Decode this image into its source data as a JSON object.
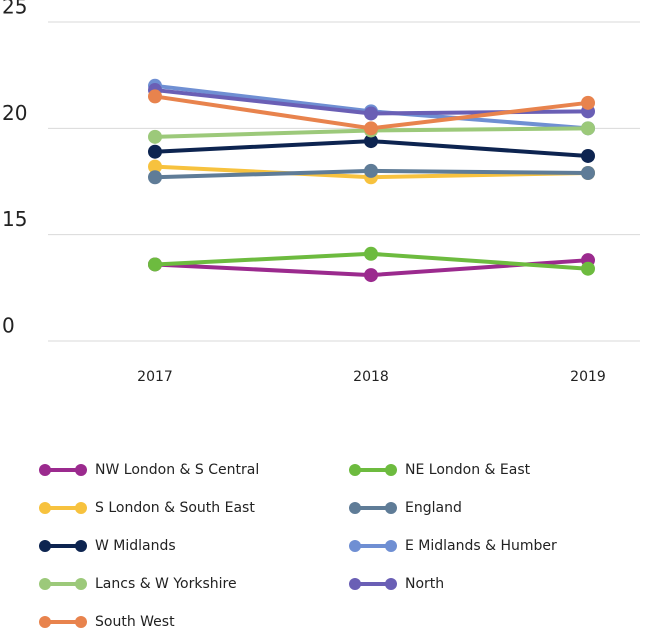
{
  "chart_data": {
    "type": "line",
    "categories": [
      "2017",
      "2018",
      "2019"
    ],
    "series": [
      {
        "name": "NW London & S Central",
        "color": "#9b2a8e",
        "values": [
          13.6,
          13.1,
          13.8
        ]
      },
      {
        "name": "NE London & East",
        "color": "#6dbb3f",
        "values": [
          13.6,
          14.1,
          13.4
        ]
      },
      {
        "name": "S London & South East",
        "color": "#f7c23e",
        "values": [
          18.2,
          17.7,
          17.9
        ]
      },
      {
        "name": "England",
        "color": "#5f7c97",
        "values": [
          17.7,
          18.0,
          17.9
        ]
      },
      {
        "name": "W Midlands",
        "color": "#0d2450",
        "values": [
          18.9,
          19.4,
          18.7
        ]
      },
      {
        "name": "E Midlands & Humber",
        "color": "#6f8fd3",
        "values": [
          22.0,
          20.8,
          20.0
        ]
      },
      {
        "name": "Lancs & W Yorkshire",
        "color": "#9cc97a",
        "values": [
          19.6,
          19.9,
          20.0
        ]
      },
      {
        "name": "North",
        "color": "#6a5fb5",
        "values": [
          21.8,
          20.7,
          20.8
        ]
      },
      {
        "name": "South West",
        "color": "#e8834d",
        "values": [
          21.5,
          20.0,
          21.2
        ]
      }
    ],
    "ylim": [
      10,
      25
    ],
    "yticks": [
      {
        "value": 10,
        "label": "0"
      },
      15,
      20,
      25
    ],
    "grid": true
  }
}
